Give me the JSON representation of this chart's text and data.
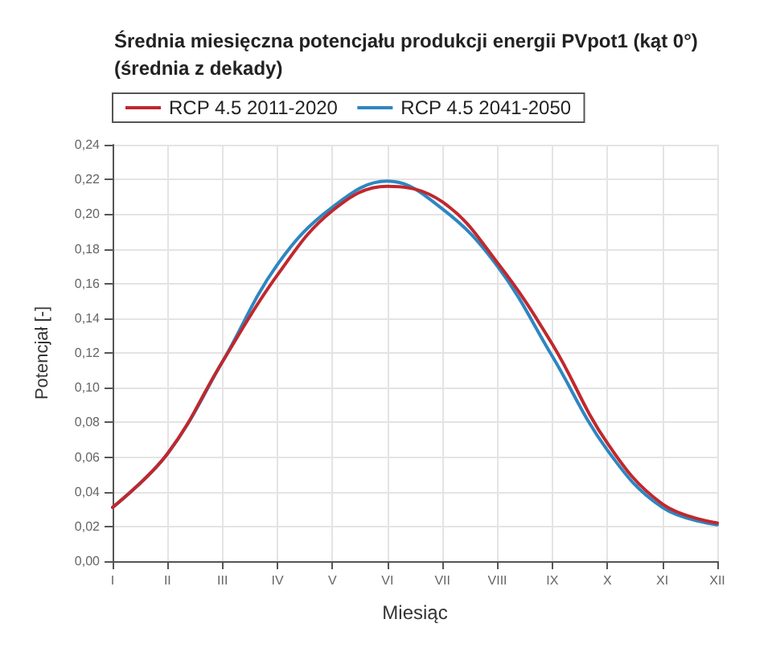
{
  "chart_data": {
    "type": "line",
    "title": "Średnia miesięczna potencjału produkcji energii PVpot1 (kąt 0°)\n(średnia z dekady)",
    "xlabel": "Miesiąc",
    "ylabel": "Potencjał [-]",
    "categories": [
      "I",
      "II",
      "III",
      "IV",
      "V",
      "VI",
      "VII",
      "VIII",
      "IX",
      "X",
      "XI",
      "XII"
    ],
    "series": [
      {
        "name": "RCP 4.5 2011-2020",
        "color": "#c0282d",
        "values": [
          0.031,
          0.062,
          0.115,
          0.165,
          0.202,
          0.216,
          0.207,
          0.172,
          0.125,
          0.068,
          0.033,
          0.022
        ]
      },
      {
        "name": "RCP 4.5 2041-2050",
        "color": "#2e86c1",
        "values": [
          0.031,
          0.062,
          0.115,
          0.171,
          0.204,
          0.219,
          0.203,
          0.17,
          0.118,
          0.064,
          0.031,
          0.021
        ]
      }
    ],
    "ylim": [
      0,
      0.24
    ],
    "yticks": [
      {
        "value": 0,
        "label": "0,00"
      },
      {
        "value": 0.02,
        "label": "0,02"
      },
      {
        "value": 0.04,
        "label": "0,04"
      },
      {
        "value": 0.06,
        "label": "0,06"
      },
      {
        "value": 0.08,
        "label": "0,08"
      },
      {
        "value": 0.1,
        "label": "0,10"
      },
      {
        "value": 0.12,
        "label": "0,12"
      },
      {
        "value": 0.14,
        "label": "0,14"
      },
      {
        "value": 0.16,
        "label": "0,16"
      },
      {
        "value": 0.18,
        "label": "0,18"
      },
      {
        "value": 0.2,
        "label": "0,20"
      },
      {
        "value": 0.22,
        "label": "0,22"
      },
      {
        "value": 0.24,
        "label": "0,24"
      }
    ],
    "grid": true,
    "legend": "top left",
    "marker": "none",
    "line_style": "solid"
  }
}
